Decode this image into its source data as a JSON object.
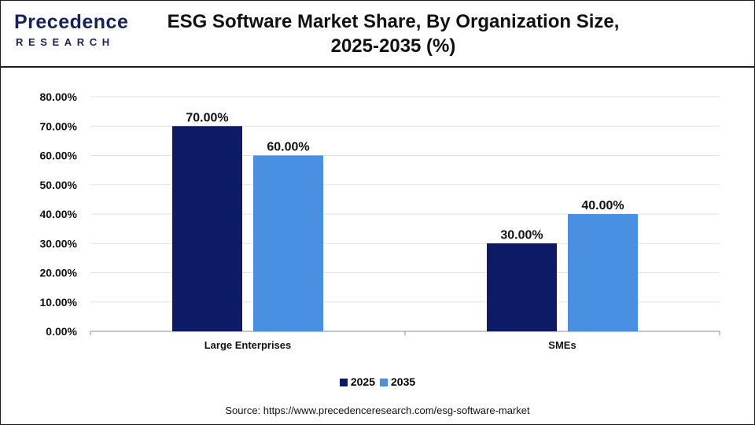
{
  "brand": {
    "logo_word": "Precedence",
    "logo_sub": "RESEARCH",
    "logo_color": "#16215f"
  },
  "chart_data": {
    "type": "bar",
    "title": "ESG Software Market Share, By Organization Size, 2025-2035 (%)",
    "categories": [
      "Large Enterprises",
      "SMEs"
    ],
    "series": [
      {
        "name": "2025",
        "values": [
          70,
          30
        ],
        "color": "#0d1a66"
      },
      {
        "name": "2035",
        "values": [
          60,
          40
        ],
        "color": "#4a90e2"
      }
    ],
    "data_labels": [
      [
        "70.00%",
        "30.00%"
      ],
      [
        "60.00%",
        "40.00%"
      ]
    ],
    "yticks": [
      "0.00%",
      "10.00%",
      "20.00%",
      "30.00%",
      "40.00%",
      "50.00%",
      "60.00%",
      "70.00%",
      "80.00%"
    ],
    "ylim": [
      0,
      80
    ],
    "xlabel": "",
    "ylabel": "",
    "grid": true,
    "legend_position": "bottom-center"
  },
  "source": "Source: https://www.precedenceresearch.com/esg-software-market"
}
